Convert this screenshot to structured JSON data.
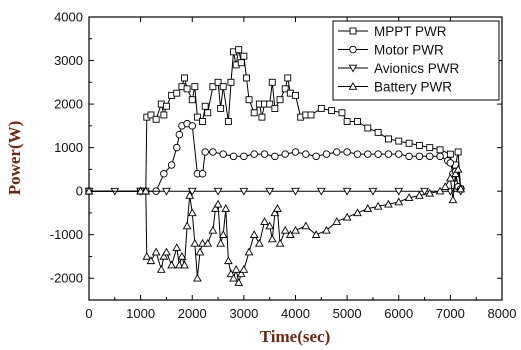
{
  "chart_data": {
    "type": "line",
    "xlabel": "Time(sec)",
    "ylabel": "Power(W)",
    "xlim": [
      0,
      8000
    ],
    "ylim": [
      -2500,
      4000
    ],
    "xticks": [
      "0",
      "1000",
      "2000",
      "3000",
      "4000",
      "5000",
      "6000",
      "7000",
      "8000"
    ],
    "yticks": [
      "-2000",
      "-1000",
      "0",
      "1000",
      "2000",
      "3000",
      "4000"
    ],
    "grid": false,
    "legend_position": "top-right",
    "series": [
      {
        "name": "MPPT PWR",
        "marker": "square",
        "points": [
          [
            0,
            0
          ],
          [
            1000,
            0
          ],
          [
            1100,
            0
          ],
          [
            1120,
            1700
          ],
          [
            1200,
            1750
          ],
          [
            1300,
            1650
          ],
          [
            1400,
            2000
          ],
          [
            1450,
            1750
          ],
          [
            1500,
            1950
          ],
          [
            1600,
            2200
          ],
          [
            1700,
            2250
          ],
          [
            1800,
            2400
          ],
          [
            1850,
            2600
          ],
          [
            1900,
            2350
          ],
          [
            2000,
            2100
          ],
          [
            2050,
            2400
          ],
          [
            2100,
            1700
          ],
          [
            2200,
            1600
          ],
          [
            2250,
            1950
          ],
          [
            2300,
            1800
          ],
          [
            2400,
            2400
          ],
          [
            2500,
            2500
          ],
          [
            2550,
            1900
          ],
          [
            2600,
            2400
          ],
          [
            2700,
            1600
          ],
          [
            2750,
            2500
          ],
          [
            2800,
            3200
          ],
          [
            2850,
            2900
          ],
          [
            2900,
            3250
          ],
          [
            2950,
            2950
          ],
          [
            3000,
            3100
          ],
          [
            3050,
            2600
          ],
          [
            3100,
            2100
          ],
          [
            3200,
            1800
          ],
          [
            3300,
            2000
          ],
          [
            3350,
            1700
          ],
          [
            3400,
            2000
          ],
          [
            3500,
            2000
          ],
          [
            3550,
            2500
          ],
          [
            3600,
            1900
          ],
          [
            3700,
            2100
          ],
          [
            3800,
            2350
          ],
          [
            3850,
            2600
          ],
          [
            3900,
            2250
          ],
          [
            4000,
            2200
          ],
          [
            4100,
            1700
          ],
          [
            4200,
            1750
          ],
          [
            4300,
            1750
          ],
          [
            4500,
            1900
          ],
          [
            4700,
            1850
          ],
          [
            4900,
            1800
          ],
          [
            5000,
            1600
          ],
          [
            5200,
            1600
          ],
          [
            5400,
            1450
          ],
          [
            5600,
            1350
          ],
          [
            5800,
            1200
          ],
          [
            6000,
            1150
          ],
          [
            6200,
            1100
          ],
          [
            6400,
            1050
          ],
          [
            6600,
            1000
          ],
          [
            6800,
            950
          ],
          [
            7000,
            850
          ],
          [
            7050,
            300
          ],
          [
            7100,
            600
          ],
          [
            7150,
            900
          ],
          [
            7200,
            50
          ]
        ]
      },
      {
        "name": "Motor PWR",
        "marker": "circle",
        "points": [
          [
            0,
            0
          ],
          [
            1000,
            0
          ],
          [
            1300,
            0
          ],
          [
            1450,
            400
          ],
          [
            1600,
            600
          ],
          [
            1700,
            1000
          ],
          [
            1750,
            1300
          ],
          [
            1800,
            1500
          ],
          [
            1900,
            1550
          ],
          [
            2000,
            1500
          ],
          [
            2100,
            400
          ],
          [
            2200,
            400
          ],
          [
            2250,
            900
          ],
          [
            2400,
            900
          ],
          [
            2600,
            850
          ],
          [
            2800,
            800
          ],
          [
            3000,
            800
          ],
          [
            3200,
            850
          ],
          [
            3400,
            850
          ],
          [
            3600,
            800
          ],
          [
            3800,
            850
          ],
          [
            4000,
            900
          ],
          [
            4200,
            850
          ],
          [
            4400,
            800
          ],
          [
            4600,
            850
          ],
          [
            4800,
            900
          ],
          [
            5000,
            900
          ],
          [
            5200,
            850
          ],
          [
            5400,
            850
          ],
          [
            5600,
            850
          ],
          [
            5800,
            850
          ],
          [
            6000,
            850
          ],
          [
            6200,
            800
          ],
          [
            6400,
            800
          ],
          [
            6600,
            800
          ],
          [
            6800,
            800
          ],
          [
            6950,
            700
          ],
          [
            7000,
            650
          ],
          [
            7050,
            400
          ],
          [
            7100,
            450
          ],
          [
            7150,
            100
          ],
          [
            7200,
            50
          ]
        ]
      },
      {
        "name": "Avionics PWR",
        "marker": "triangle-down",
        "points": [
          [
            0,
            0
          ],
          [
            500,
            0
          ],
          [
            1000,
            0
          ],
          [
            1500,
            0
          ],
          [
            2000,
            0
          ],
          [
            2500,
            0
          ],
          [
            3000,
            0
          ],
          [
            3500,
            0
          ],
          [
            4000,
            0
          ],
          [
            4500,
            0
          ],
          [
            5000,
            0
          ],
          [
            5500,
            0
          ],
          [
            6000,
            0
          ],
          [
            6500,
            0
          ],
          [
            7000,
            0
          ],
          [
            7200,
            0
          ]
        ]
      },
      {
        "name": "Battery PWR",
        "marker": "triangle-up",
        "points": [
          [
            0,
            0
          ],
          [
            1000,
            0
          ],
          [
            1100,
            0
          ],
          [
            1120,
            -1500
          ],
          [
            1200,
            -1600
          ],
          [
            1300,
            -1400
          ],
          [
            1400,
            -1800
          ],
          [
            1450,
            -1500
          ],
          [
            1500,
            -1400
          ],
          [
            1600,
            -1700
          ],
          [
            1700,
            -1300
          ],
          [
            1750,
            -1700
          ],
          [
            1800,
            -1500
          ],
          [
            1850,
            -1700
          ],
          [
            1900,
            -800
          ],
          [
            1950,
            -100
          ],
          [
            2000,
            -500
          ],
          [
            2050,
            -1200
          ],
          [
            2100,
            -2000
          ],
          [
            2150,
            -1400
          ],
          [
            2200,
            -1200
          ],
          [
            2300,
            -1200
          ],
          [
            2400,
            -900
          ],
          [
            2450,
            -400
          ],
          [
            2500,
            -300
          ],
          [
            2550,
            -1200
          ],
          [
            2600,
            -1000
          ],
          [
            2650,
            -400
          ],
          [
            2700,
            -1600
          ],
          [
            2750,
            -1900
          ],
          [
            2800,
            -2000
          ],
          [
            2850,
            -1800
          ],
          [
            2900,
            -2100
          ],
          [
            2950,
            -1900
          ],
          [
            3000,
            -1800
          ],
          [
            3100,
            -1400
          ],
          [
            3200,
            -1000
          ],
          [
            3300,
            -1200
          ],
          [
            3400,
            -700
          ],
          [
            3500,
            -800
          ],
          [
            3550,
            -1100
          ],
          [
            3600,
            -500
          ],
          [
            3650,
            -400
          ],
          [
            3700,
            -1200
          ],
          [
            3800,
            -900
          ],
          [
            3900,
            -1000
          ],
          [
            4000,
            -900
          ],
          [
            4200,
            -800
          ],
          [
            4400,
            -1000
          ],
          [
            4600,
            -900
          ],
          [
            4800,
            -700
          ],
          [
            5000,
            -600
          ],
          [
            5200,
            -500
          ],
          [
            5400,
            -400
          ],
          [
            5600,
            -350
          ],
          [
            5800,
            -300
          ],
          [
            6000,
            -250
          ],
          [
            6200,
            -150
          ],
          [
            6400,
            -100
          ],
          [
            6600,
            -50
          ],
          [
            6800,
            0
          ],
          [
            6900,
            100
          ],
          [
            7000,
            300
          ],
          [
            7050,
            -200
          ],
          [
            7100,
            400
          ],
          [
            7150,
            500
          ],
          [
            7200,
            50
          ]
        ]
      }
    ]
  }
}
